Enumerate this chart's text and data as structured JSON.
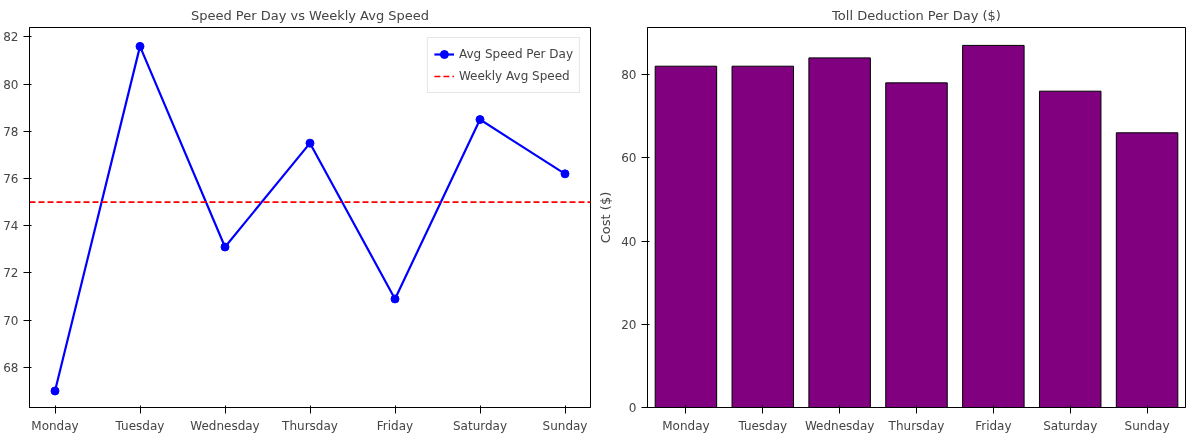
{
  "chart_data": [
    {
      "type": "line",
      "title": "Speed Per Day vs Weekly Avg Speed",
      "categories": [
        "Monday",
        "Tuesday",
        "Wednesday",
        "Thursday",
        "Friday",
        "Saturday",
        "Sunday"
      ],
      "series": [
        {
          "name": "Avg Speed Per Day",
          "color": "#0000ff",
          "values": [
            67.0,
            81.6,
            73.1,
            77.5,
            70.9,
            78.5,
            76.2
          ]
        }
      ],
      "marker": "circle",
      "line_style": "solid",
      "ref_lines": [
        {
          "axis": "y",
          "value": 75,
          "label": "Weekly Avg Speed",
          "color": "#ff0000",
          "line_style": "dashed"
        }
      ],
      "ylim": [
        66.3,
        82.4
      ],
      "yticks": [
        68,
        70,
        72,
        74,
        76,
        78,
        80,
        82
      ],
      "legend": "top right",
      "grid": false
    },
    {
      "type": "bar",
      "title": "Toll Deduction Per Day ($)",
      "ylabel": "Cost ($)",
      "categories": [
        "Monday",
        "Tuesday",
        "Wednesday",
        "Thursday",
        "Friday",
        "Saturday",
        "Sunday"
      ],
      "values": [
        82,
        82,
        84,
        78,
        87,
        76,
        66
      ],
      "color": "#800080",
      "ylim": [
        0,
        91.3
      ],
      "yticks": [
        0,
        20,
        40,
        60,
        80
      ],
      "grid": false
    }
  ]
}
